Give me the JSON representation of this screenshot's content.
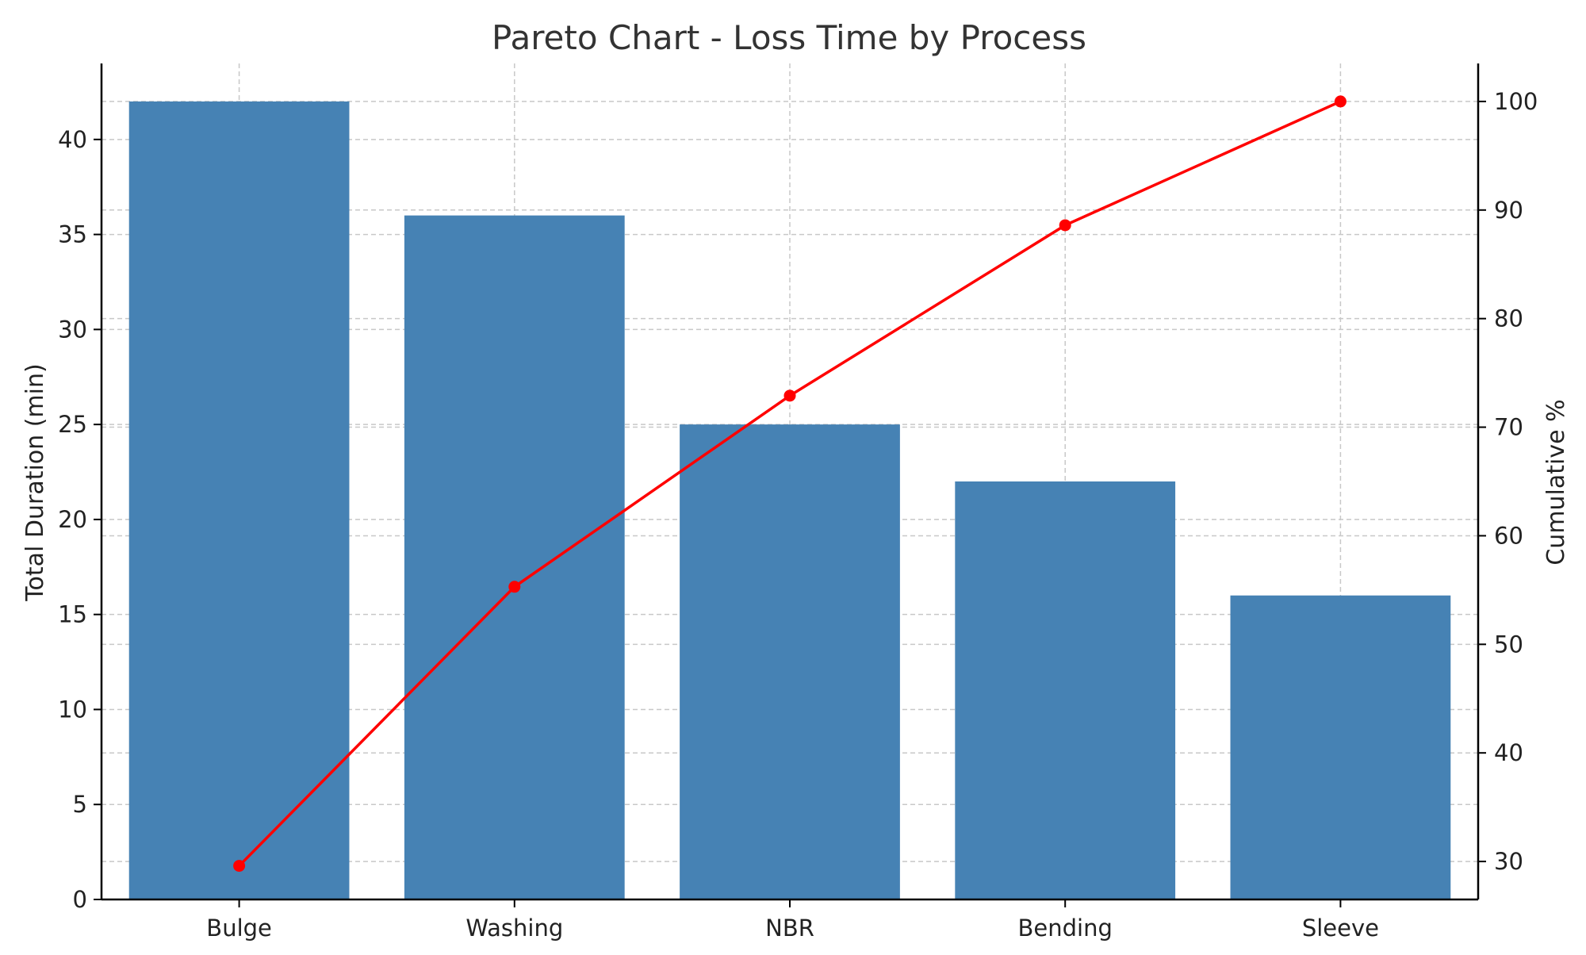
{
  "chart_data": {
    "type": "bar",
    "title": "Pareto Chart - Loss Time by Process",
    "xlabel": "",
    "ylabel": "Total Duration (min)",
    "y2label": "Cumulative %",
    "categories": [
      "Bulge",
      "Washing",
      "NBR",
      "Bending",
      "Sleeve"
    ],
    "series": [
      {
        "type": "bar",
        "axis": "left",
        "values": [
          42,
          36,
          25,
          22,
          16
        ]
      },
      {
        "type": "line",
        "axis": "right",
        "values": [
          29.6,
          55.3,
          72.9,
          88.6,
          100.0
        ]
      }
    ],
    "ylim": [
      0,
      44
    ],
    "y2lim": [
      26.5,
      103.5
    ],
    "yticks": [
      "0",
      "5",
      "10",
      "15",
      "20",
      "25",
      "30",
      "35",
      "40"
    ],
    "y2ticks": [
      "30",
      "40",
      "50",
      "60",
      "70",
      "80",
      "90",
      "100"
    ],
    "grid": true,
    "colors": {
      "bar": "#4682b4",
      "line": "#ff0000",
      "grid": "#c8c8c8",
      "axis": "#000000"
    }
  }
}
